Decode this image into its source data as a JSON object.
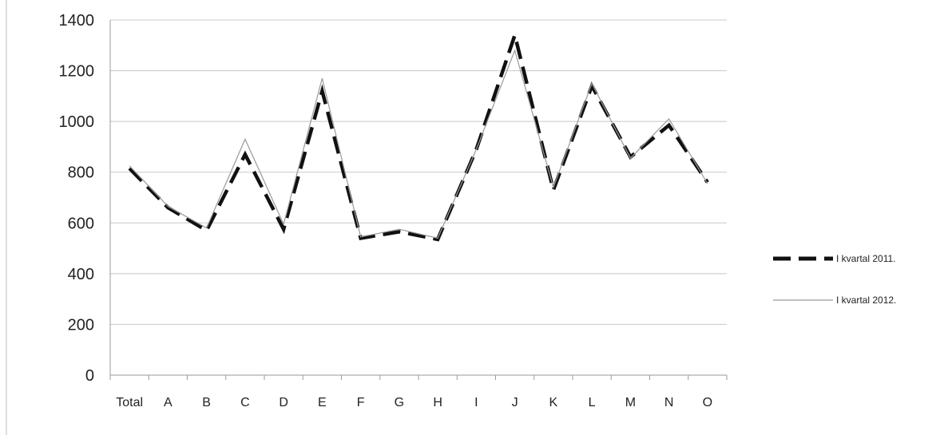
{
  "chart_data": {
    "type": "line",
    "categories": [
      "Total",
      "A",
      "B",
      "C",
      "D",
      "E",
      "F",
      "G",
      "H",
      "I",
      "J",
      "K",
      "L",
      "M",
      "N",
      "O"
    ],
    "series": [
      {
        "name": "I kvartal 2011.",
        "values": [
          815,
          660,
          570,
          870,
          575,
          1120,
          540,
          565,
          535,
          890,
          1340,
          730,
          1140,
          860,
          985,
          760
        ],
        "color": "#111111",
        "style": "dashed"
      },
      {
        "name": "I kvartal 2012.",
        "values": [
          825,
          665,
          580,
          930,
          595,
          1170,
          545,
          575,
          540,
          890,
          1280,
          740,
          1150,
          855,
          1010,
          755
        ],
        "color": "#999999",
        "style": "solid"
      }
    ],
    "yticks": [
      0,
      200,
      400,
      600,
      800,
      1000,
      1200,
      1400
    ],
    "ylim": [
      0,
      1400
    ],
    "grid": true,
    "legend_position": "right"
  }
}
